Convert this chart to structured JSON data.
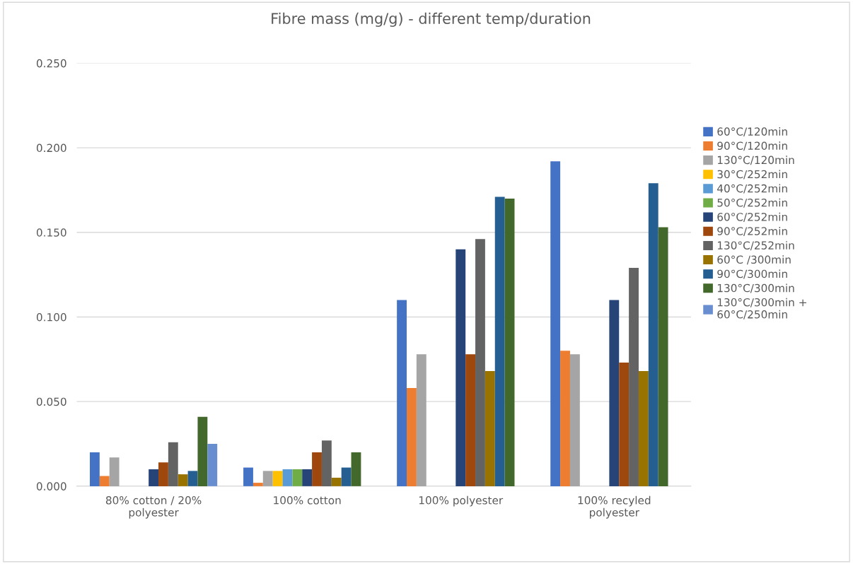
{
  "chart_data": {
    "type": "bar",
    "title": "Fibre mass (mg/g) - different temp/duration",
    "categories": [
      "80% cotton / 20%\npolyester",
      "100% cotton",
      "100% polyester",
      "100% recyled\npolyester"
    ],
    "series": [
      {
        "name": "60°C/120min",
        "color": "#4472c4",
        "values": [
          0.02,
          0.011,
          0.11,
          0.192
        ]
      },
      {
        "name": "90°C/120min",
        "color": "#ed7d31",
        "values": [
          0.006,
          0.002,
          0.058,
          0.08
        ]
      },
      {
        "name": "130°C/120min",
        "color": "#a5a5a5",
        "values": [
          0.017,
          0.009,
          0.078,
          0.078
        ]
      },
      {
        "name": "30°C/252min",
        "color": "#ffc000",
        "values": [
          null,
          0.009,
          null,
          null
        ]
      },
      {
        "name": "40°C/252min",
        "color": "#5b9bd5",
        "values": [
          null,
          0.01,
          null,
          null
        ]
      },
      {
        "name": "50°C/252min",
        "color": "#70ad47",
        "values": [
          null,
          0.01,
          null,
          null
        ]
      },
      {
        "name": "60°C/252min",
        "color": "#264478",
        "values": [
          0.01,
          0.01,
          0.14,
          0.11
        ]
      },
      {
        "name": "90°C/252min",
        "color": "#9e480e",
        "values": [
          0.014,
          0.02,
          0.078,
          0.073
        ]
      },
      {
        "name": "130°C/252min",
        "color": "#636363",
        "values": [
          0.026,
          0.027,
          0.146,
          0.129
        ]
      },
      {
        "name": "60°C /300min",
        "color": "#997300",
        "values": [
          0.007,
          0.005,
          0.068,
          0.068
        ]
      },
      {
        "name": "90°C/300min",
        "color": "#255e91",
        "values": [
          0.009,
          0.011,
          0.171,
          0.179
        ]
      },
      {
        "name": "130°C/300min",
        "color": "#43682b",
        "values": [
          0.041,
          0.02,
          0.17,
          0.153
        ]
      },
      {
        "name": "130°C/300min +\n60°C/250min",
        "color": "#698ed0",
        "values": [
          0.025,
          null,
          null,
          null
        ]
      }
    ],
    "ylim": [
      0,
      0.25
    ],
    "yticks": [
      {
        "value": 0,
        "label": "0.000"
      },
      {
        "value": 0.05,
        "label": "0.050"
      },
      {
        "value": 0.1,
        "label": "0.100"
      },
      {
        "value": 0.15,
        "label": "0.150"
      },
      {
        "value": 0.2,
        "label": "0.200"
      },
      {
        "value": 0.25,
        "label": "0.250"
      }
    ],
    "grid": "y",
    "legend": "right"
  }
}
